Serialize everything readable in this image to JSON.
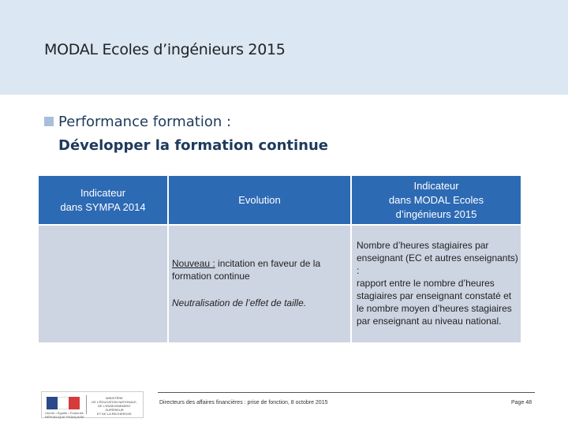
{
  "slide": {
    "title": "MODAL Ecoles d’ingénieurs 2015",
    "bullet_heading": "Performance formation :",
    "subheading": "Développer la formation continue"
  },
  "table": {
    "headers": [
      "Indicateur\ndans SYMPA 2014",
      "Evolution",
      "Indicateur\ndans MODAL Ecoles\nd’ingénieurs 2015"
    ],
    "evolution": {
      "underlined": "Nouveau :",
      "text": " incitation en faveur de la formation continue",
      "italic": "Neutralisation de l’effet de taille."
    },
    "indicator_2015": "Nombre d’heures stagiaires par enseignant (EC et autres enseignants) :\nrapport entre le nombre d’heures stagiaires par enseignant constaté et le nombre moyen d’heures stagiaires par enseignant au niveau national."
  },
  "footer": {
    "text": "Directeurs des affaires financières : prise de fonction, 8 octobre 2015",
    "page": "Page 48"
  },
  "logo": {
    "caption": "Liberté • Égalité • Fraternité\nRÉPUBLIQUE FRANÇAISE",
    "text": "MINISTÈRE\nDE L'ÉDUCATION NATIONALE,\nDE L'ENSEIGNEMENT SUPÉRIEUR\nET DE LA RECHERCHE"
  },
  "colors": {
    "header_band": "#dbe7f3",
    "table_header": "#2d6ab4",
    "table_body": "#cdd4e2",
    "heading_text": "#1d3a5c"
  }
}
